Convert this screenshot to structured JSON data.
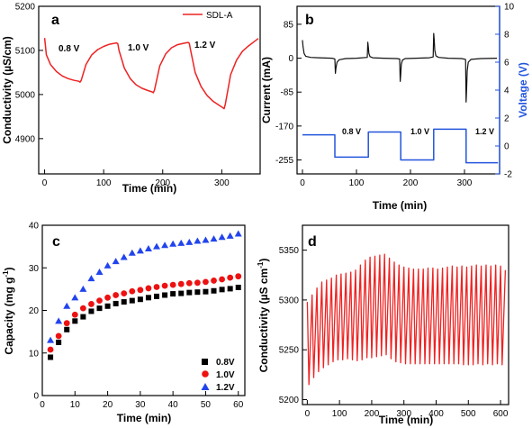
{
  "chart_data": [
    {
      "panel": "a",
      "type": "line",
      "xlabel": "Time (min)",
      "ylabel": "Conductivity (µS/cm)",
      "xlim": [
        -10,
        365
      ],
      "ylim": [
        4820,
        5200
      ],
      "xticks": [
        0,
        100,
        200,
        300
      ],
      "yticks": [
        4900,
        5000,
        5100,
        5200
      ],
      "legend": {
        "entries": [
          "SDL-A"
        ],
        "position": "top-right"
      },
      "annotations": [
        "0.8 V",
        "1.0 V",
        "1.2 V"
      ],
      "color": "#ee2222",
      "x": [
        0,
        3,
        10,
        20,
        30,
        40,
        50,
        58,
        60,
        62,
        70,
        80,
        90,
        100,
        110,
        122,
        124,
        126,
        135,
        145,
        155,
        165,
        175,
        182,
        184,
        186,
        195,
        205,
        215,
        225,
        235,
        243,
        245,
        247,
        255,
        265,
        275,
        285,
        295,
        302,
        304,
        306,
        315,
        325,
        335,
        345,
        355,
        362
      ],
      "y": [
        5128,
        5090,
        5068,
        5052,
        5042,
        5036,
        5032,
        5030,
        5028,
        5032,
        5068,
        5090,
        5102,
        5109,
        5114,
        5117,
        5115,
        5100,
        5060,
        5036,
        5022,
        5014,
        5009,
        5006,
        5004,
        5010,
        5065,
        5092,
        5106,
        5113,
        5116,
        5118,
        5116,
        5102,
        5050,
        5018,
        4998,
        4985,
        4976,
        4970,
        4968,
        4978,
        5045,
        5078,
        5098,
        5110,
        5120,
        5127
      ]
    },
    {
      "panel": "b",
      "type": "line",
      "xlabel": "Time (min)",
      "ylabel": "Current (mA)",
      "ylabel_right": "Voltage (V)",
      "xlim": [
        -10,
        365
      ],
      "ylim": [
        -290,
        130
      ],
      "ylim_right": [
        -2,
        10
      ],
      "xticks": [
        0,
        100,
        200,
        300
      ],
      "yticks": [
        85,
        0,
        -85,
        -170,
        -255
      ],
      "yticks_right": [
        -2,
        0,
        2,
        4,
        6,
        8,
        10
      ],
      "annotations": [
        "0.8 V",
        "1.0 V",
        "1.2 V"
      ],
      "series": [
        {
          "axis": "left",
          "color": "#111111",
          "x": [
            0,
            1,
            3,
            6,
            15,
            30,
            55,
            60,
            61,
            62,
            64,
            68,
            80,
            100,
            120,
            121,
            122,
            123,
            125,
            130,
            150,
            175,
            180,
            181,
            182,
            183,
            185,
            190,
            210,
            235,
            242,
            243,
            244,
            245,
            247,
            252,
            270,
            295,
            302,
            303,
            304,
            305,
            307,
            312,
            330,
            360
          ],
          "y": [
            45,
            30,
            12,
            5,
            2,
            1,
            0,
            -2,
            -38,
            -25,
            -10,
            -4,
            -1,
            0,
            2,
            40,
            28,
            12,
            4,
            1,
            0,
            -1,
            -2,
            -58,
            -40,
            -16,
            -5,
            -1,
            0,
            1,
            3,
            62,
            45,
            20,
            6,
            2,
            0,
            -1,
            -3,
            -110,
            -75,
            -32,
            -10,
            -3,
            -1,
            0
          ]
        },
        {
          "axis": "right",
          "color": "#2255dd",
          "x": [
            0,
            60,
            60,
            122,
            122,
            182,
            182,
            243,
            243,
            303,
            303,
            362
          ],
          "y": [
            0.8,
            0.8,
            -0.8,
            -0.8,
            1.0,
            1.0,
            -1.0,
            -1.0,
            1.2,
            1.2,
            -1.2,
            -1.2
          ]
        }
      ]
    },
    {
      "panel": "c",
      "type": "scatter",
      "xlabel": "Time (min)",
      "ylabel": "Capacity (mg g⁻¹)",
      "xlim": [
        0,
        62
      ],
      "ylim": [
        0,
        40
      ],
      "xticks": [
        0,
        10,
        20,
        30,
        40,
        50,
        60
      ],
      "yticks": [
        0,
        10,
        20,
        30,
        40
      ],
      "legend": {
        "entries": [
          "0.8V",
          "1.0V",
          "1.2V"
        ],
        "position": "bottom-right"
      },
      "x": [
        2.5,
        5,
        7.5,
        10,
        12.5,
        15,
        17.5,
        20,
        22.5,
        25,
        27.5,
        30,
        32.5,
        35,
        37.5,
        40,
        42.5,
        45,
        47.5,
        50,
        52.5,
        55,
        57.5,
        60
      ],
      "series": [
        {
          "name": "0.8V",
          "marker": "square",
          "color": "#000000",
          "values": [
            9,
            12.5,
            15.5,
            17.5,
            18.5,
            19.8,
            20.5,
            21,
            21.6,
            22,
            22.3,
            22.6,
            23,
            23.3,
            23.6,
            23.9,
            24,
            24.2,
            24.3,
            24.4,
            24.6,
            24.9,
            25.1,
            25.4
          ]
        },
        {
          "name": "1.0V",
          "marker": "circle",
          "color": "#ee1111",
          "values": [
            10.8,
            14,
            17,
            19,
            20.5,
            21.5,
            22.3,
            23,
            23.6,
            24,
            24.5,
            24.8,
            25.2,
            25.5,
            25.8,
            26,
            26.2,
            26.4,
            26.5,
            26.7,
            27,
            27.3,
            27.7,
            28
          ]
        },
        {
          "name": "1.2V",
          "marker": "triangle",
          "color": "#2244ee",
          "values": [
            13,
            17.5,
            21,
            23,
            25,
            27.5,
            29,
            30.5,
            31.5,
            32.5,
            33.5,
            34,
            34.5,
            35,
            35.3,
            35.6,
            35.8,
            36,
            36.3,
            36.5,
            36.8,
            37.2,
            37.5,
            38
          ]
        }
      ]
    },
    {
      "panel": "d",
      "type": "line",
      "xlabel": "Time (min)",
      "ylabel": "Conductivity (µS cm⁻¹)",
      "xlim": [
        -15,
        625
      ],
      "ylim": [
        5195,
        5375
      ],
      "xticks": [
        0,
        100,
        200,
        300,
        400,
        500,
        600
      ],
      "yticks": [
        5200,
        5250,
        5300,
        5350
      ],
      "color": "#ee2222",
      "x": [
        0,
        5,
        15,
        20,
        30,
        35,
        45,
        50,
        60,
        65,
        75,
        80,
        90,
        95,
        105,
        110,
        120,
        125,
        135,
        140,
        150,
        155,
        165,
        170,
        180,
        185,
        195,
        200,
        210,
        215,
        225,
        230,
        240,
        245,
        255,
        260,
        270,
        275,
        285,
        290,
        300,
        305,
        315,
        320,
        330,
        335,
        345,
        350,
        360,
        365,
        375,
        380,
        390,
        395,
        405,
        410,
        420,
        425,
        435,
        440,
        450,
        455,
        465,
        470,
        480,
        485,
        495,
        500,
        510,
        515,
        525,
        530,
        540,
        545,
        555,
        560,
        570,
        575,
        585,
        590,
        600,
        605,
        615
      ],
      "y": [
        5298,
        5215,
        5305,
        5222,
        5312,
        5228,
        5318,
        5232,
        5320,
        5235,
        5322,
        5238,
        5325,
        5240,
        5326,
        5240,
        5327,
        5241,
        5328,
        5240,
        5330,
        5239,
        5335,
        5240,
        5340,
        5242,
        5343,
        5242,
        5344,
        5243,
        5345,
        5244,
        5346,
        5245,
        5342,
        5241,
        5338,
        5238,
        5335,
        5237,
        5333,
        5236,
        5332,
        5236,
        5331,
        5236,
        5331,
        5236,
        5331,
        5236,
        5332,
        5236,
        5332,
        5236,
        5331,
        5236,
        5332,
        5236,
        5333,
        5236,
        5334,
        5236,
        5333,
        5236,
        5334,
        5235,
        5333,
        5235,
        5334,
        5235,
        5335,
        5236,
        5334,
        5235,
        5335,
        5236,
        5334,
        5235,
        5335,
        5236,
        5334,
        5235,
        5330
      ]
    }
  ],
  "panels": [
    {
      "letter": "a",
      "xlabel": "Time (min)",
      "ylabel": "Conductivity (µS/cm)",
      "legend": "SDL-A",
      "annotations": [
        "0.8 V",
        "1.0 V",
        "1.2 V"
      ]
    },
    {
      "letter": "b",
      "xlabel": "Time (min)",
      "ylabel": "Current (mA)",
      "ylabel_right": "Voltage (V)",
      "annotations": [
        "0.8 V",
        "1.0 V",
        "1.2 V"
      ]
    },
    {
      "letter": "c",
      "xlabel": "Time (min)",
      "ylabel_main": "Capacity (mg g",
      "ylabel_sup": "-1",
      "ylabel_end": ")",
      "legend": [
        "0.8V",
        "1.0V",
        "1.2V"
      ]
    },
    {
      "letter": "d",
      "xlabel": "Time (min)",
      "ylabel_main": "Conductivity (µS cm",
      "ylabel_sup": "-1",
      "ylabel_end": ")"
    }
  ]
}
